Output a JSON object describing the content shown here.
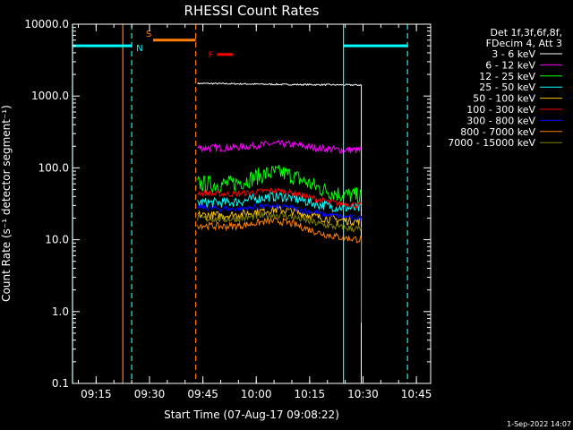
{
  "chart_data": {
    "type": "line",
    "title": "RHESSI Count Rates",
    "xlabel": "Start Time (07-Aug-17 09:08:22)",
    "ylabel": "Count Rate (s⁻¹ detector segment⁻¹)",
    "yscale": "log",
    "ylim": [
      0.1,
      10000
    ],
    "xlim": [
      "09:08:22",
      "10:49:00"
    ],
    "y_ticks": [
      "0.1",
      "1.0",
      "10.0",
      "100.0",
      "1000.0",
      "10000.0"
    ],
    "x_ticks": [
      "09:15",
      "09:30",
      "09:45",
      "10:00",
      "10:15",
      "10:30",
      "10:45"
    ],
    "timestamp": "1-Sep-2022 14:07",
    "legend": {
      "position": "right",
      "header": [
        "Det 1f,3f,6f,8f,",
        "FDecim 4, Att 3"
      ]
    },
    "data_start": "09:43:30",
    "data_end": "10:29:30",
    "series": [
      {
        "name": "3 - 6 keV",
        "color": "#000000",
        "start": 1500,
        "mid": 1450,
        "end": 1420,
        "noise": 0.01
      },
      {
        "name": "6 - 12 keV",
        "color": "#ff00ff",
        "start": 190,
        "mid": 215,
        "end": 175,
        "noise": 0.05
      },
      {
        "name": "12 - 25 keV",
        "color": "#00ff00",
        "start": 60,
        "mid": 85,
        "end": 40,
        "noise": 0.12
      },
      {
        "name": "25 - 50 keV",
        "color": "#00ffff",
        "start": 33,
        "mid": 40,
        "end": 27,
        "noise": 0.07
      },
      {
        "name": "50 - 100 keV",
        "color": "#ffc000",
        "start": 22,
        "mid": 26,
        "end": 18,
        "noise": 0.06
      },
      {
        "name": "100 - 300 keV",
        "color": "#ff0000",
        "start": 45,
        "mid": 48,
        "end": 30,
        "noise": 0.04
      },
      {
        "name": "300 - 800 keV",
        "color": "#0000ff",
        "start": 28,
        "mid": 29,
        "end": 20,
        "noise": 0.04
      },
      {
        "name": "800 - 7000 keV",
        "color": "#ff8000",
        "start": 16,
        "mid": 18,
        "end": 10,
        "noise": 0.05
      },
      {
        "name": "7000 - 15000 keV",
        "color": "#808000",
        "start": 20,
        "mid": 22,
        "end": 14,
        "noise": 0.05
      }
    ],
    "flags": [
      {
        "label": "S",
        "color": "#ff8000",
        "start": "09:31:00",
        "end": "09:43:00",
        "level": 6000
      },
      {
        "label": "N",
        "color": "#00ffff",
        "start": "09:08:22",
        "end": "09:25:00",
        "level": 5000
      },
      {
        "label": "N",
        "color": "#00ffff",
        "start": "10:24:30",
        "end": "10:42:30",
        "level": 5000
      },
      {
        "label": "F",
        "color": "#ff0000",
        "start": "09:49:00",
        "end": "09:53:30",
        "level": 3800
      }
    ],
    "markers": [
      {
        "time": "09:22:30",
        "color": "#ff8000",
        "style": "solid"
      },
      {
        "time": "09:25:00",
        "color": "#00ffff",
        "style": "dashed"
      },
      {
        "time": "09:43:00",
        "color": "#ff8000",
        "style": "dashed"
      },
      {
        "time": "10:24:30",
        "color": "#00ffff",
        "style": "solid"
      },
      {
        "time": "10:42:30",
        "color": "#00ffff",
        "style": "dashed"
      },
      {
        "time": "09:08:22",
        "color": "#00ffff",
        "style": "solid"
      }
    ]
  }
}
